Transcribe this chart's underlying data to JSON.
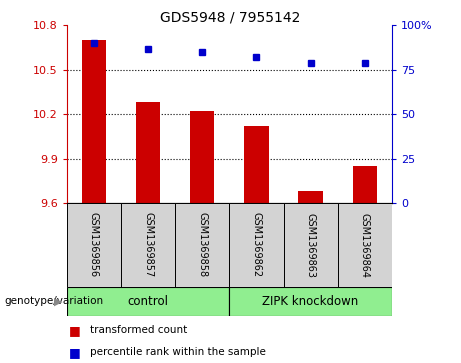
{
  "title": "GDS5948 / 7955142",
  "samples": [
    "GSM1369856",
    "GSM1369857",
    "GSM1369858",
    "GSM1369862",
    "GSM1369863",
    "GSM1369864"
  ],
  "bar_values": [
    10.7,
    10.28,
    10.22,
    10.12,
    9.68,
    9.85
  ],
  "percentile_values": [
    90,
    87,
    85,
    82,
    79,
    79
  ],
  "ylim_left": [
    9.6,
    10.8
  ],
  "ylim_right": [
    0,
    100
  ],
  "yticks_left": [
    9.6,
    9.9,
    10.2,
    10.5,
    10.8
  ],
  "yticks_right": [
    0,
    25,
    50,
    75,
    100
  ],
  "bar_color": "#cc0000",
  "dot_color": "#0000cc",
  "group1_label": "control",
  "group2_label": "ZIPK knockdown",
  "group_color": "#90ee90",
  "sample_box_color": "#d3d3d3",
  "genotype_label": "genotype/variation",
  "legend_bar_label": "transformed count",
  "legend_dot_label": "percentile rank within the sample",
  "group1_count": 3,
  "group2_count": 3
}
